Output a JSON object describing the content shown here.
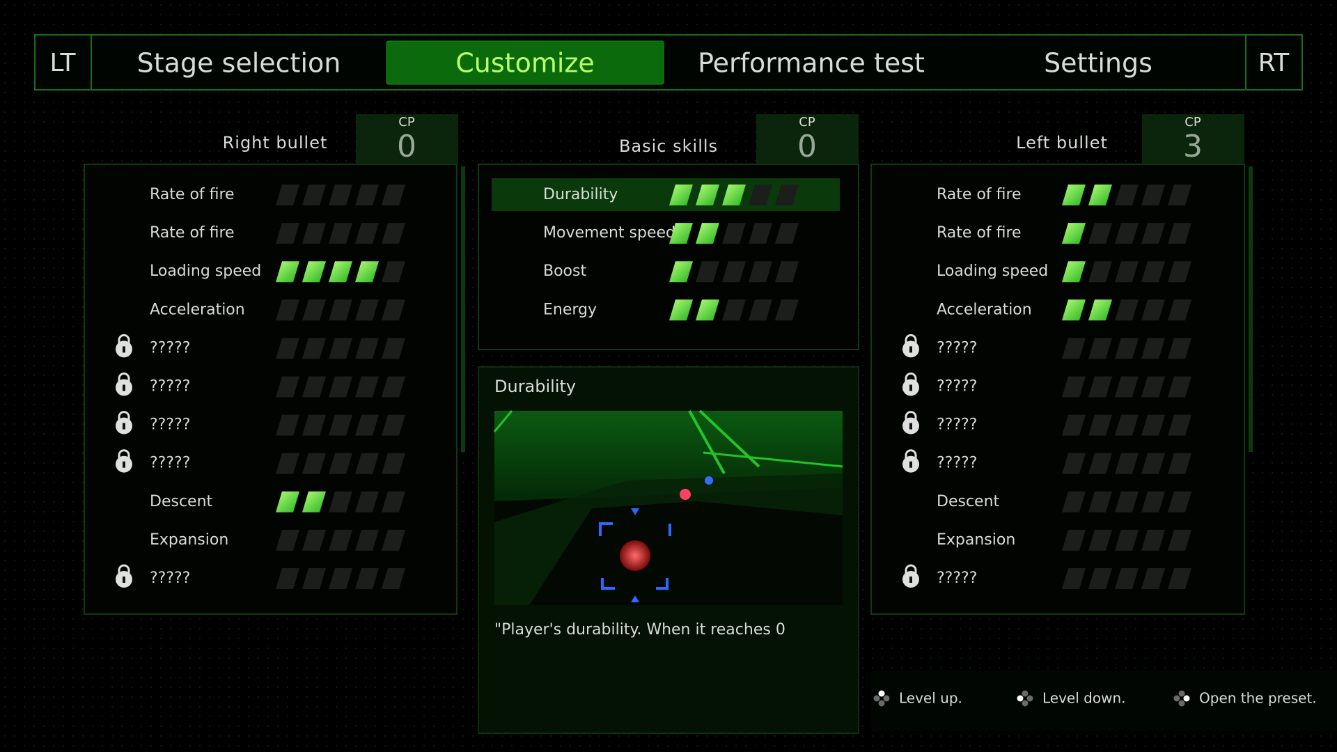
{
  "tabs": {
    "left_button": "LT",
    "right_button": "RT",
    "items": [
      {
        "label": "Stage selection",
        "active": false
      },
      {
        "label": "Customize",
        "active": true
      },
      {
        "label": "Performance test",
        "active": false
      },
      {
        "label": "Settings",
        "active": false
      }
    ]
  },
  "max_level": 5,
  "panels": [
    {
      "title": "Right bullet",
      "cp_label": "CP",
      "cp": 0,
      "rows": [
        {
          "label": "Rate of fire",
          "level": 0,
          "locked": false
        },
        {
          "label": "Rate of fire",
          "level": 0,
          "locked": false
        },
        {
          "label": "Loading speed",
          "level": 4,
          "locked": false
        },
        {
          "label": "Acceleration",
          "level": 0,
          "locked": false
        },
        {
          "label": "?????",
          "level": 0,
          "locked": true
        },
        {
          "label": "?????",
          "level": 0,
          "locked": true
        },
        {
          "label": "?????",
          "level": 0,
          "locked": true
        },
        {
          "label": "?????",
          "level": 0,
          "locked": true
        },
        {
          "label": "Descent",
          "level": 2,
          "locked": false
        },
        {
          "label": "Expansion",
          "level": 0,
          "locked": false
        },
        {
          "label": "?????",
          "level": 0,
          "locked": true
        }
      ]
    },
    {
      "title": "Basic skills",
      "cp_label": "CP",
      "cp": 0,
      "rows": [
        {
          "label": "Durability",
          "level": 3,
          "locked": false,
          "selected": true
        },
        {
          "label": "Movement speed",
          "level": 2,
          "locked": false
        },
        {
          "label": "Boost",
          "level": 1,
          "locked": false
        },
        {
          "label": "Energy",
          "level": 2,
          "locked": false
        }
      ]
    },
    {
      "title": "Left bullet",
      "cp_label": "CP",
      "cp": 3,
      "rows": [
        {
          "label": "Rate of fire",
          "level": 2,
          "locked": false
        },
        {
          "label": "Rate of fire",
          "level": 1,
          "locked": false
        },
        {
          "label": "Loading speed",
          "level": 1,
          "locked": false
        },
        {
          "label": "Acceleration",
          "level": 2,
          "locked": false
        },
        {
          "label": "?????",
          "level": 0,
          "locked": true
        },
        {
          "label": "?????",
          "level": 0,
          "locked": true
        },
        {
          "label": "?????",
          "level": 0,
          "locked": true
        },
        {
          "label": "?????",
          "level": 0,
          "locked": true
        },
        {
          "label": "Descent",
          "level": 0,
          "locked": false
        },
        {
          "label": "Expansion",
          "level": 0,
          "locked": false
        },
        {
          "label": "?????",
          "level": 0,
          "locked": true
        }
      ]
    }
  ],
  "detail": {
    "title": "Durability",
    "description": "\"Player's durability. When it reaches 0"
  },
  "hints": [
    {
      "label": "Level up."
    },
    {
      "label": "Level down."
    },
    {
      "label": "Open the preset."
    }
  ]
}
